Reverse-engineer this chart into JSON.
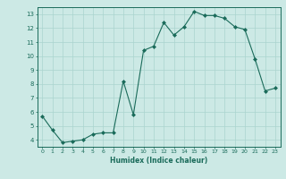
{
  "x": [
    0,
    1,
    2,
    3,
    4,
    5,
    6,
    7,
    8,
    9,
    10,
    11,
    12,
    13,
    14,
    15,
    16,
    17,
    18,
    19,
    20,
    21,
    22,
    23
  ],
  "y": [
    5.7,
    4.7,
    3.8,
    3.9,
    4.0,
    4.4,
    4.5,
    4.5,
    8.2,
    5.8,
    10.4,
    10.7,
    12.4,
    11.5,
    12.1,
    13.2,
    12.9,
    12.9,
    12.7,
    12.1,
    11.9,
    9.8,
    7.5,
    7.7
  ],
  "xlabel": "Humidex (Indice chaleur)",
  "ylim": [
    3.5,
    13.5
  ],
  "xlim": [
    -0.5,
    23.5
  ],
  "yticks": [
    4,
    5,
    6,
    7,
    8,
    9,
    10,
    11,
    12,
    13
  ],
  "xticks": [
    0,
    1,
    2,
    3,
    4,
    5,
    6,
    7,
    8,
    9,
    10,
    11,
    12,
    13,
    14,
    15,
    16,
    17,
    18,
    19,
    20,
    21,
    22,
    23
  ],
  "line_color": "#1a6b5a",
  "bg_color": "#cce9e5",
  "grid_color": "#aad4cf",
  "tick_color": "#1a6b5a",
  "label_color": "#1a6b5a",
  "fig_width": 3.2,
  "fig_height": 2.0,
  "dpi": 100
}
